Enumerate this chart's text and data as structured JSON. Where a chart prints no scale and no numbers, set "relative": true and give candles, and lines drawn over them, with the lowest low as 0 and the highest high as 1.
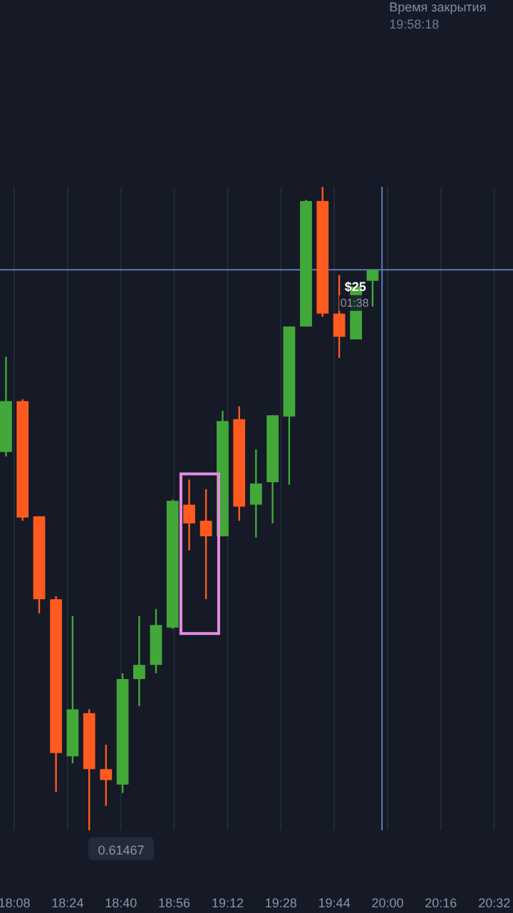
{
  "chart_data": {
    "type": "candlestick",
    "relative": true,
    "x": [
      18.092,
      18.175,
      18.258,
      18.342,
      18.425,
      18.508,
      18.592,
      18.675,
      18.758,
      18.842,
      18.925,
      19.008,
      19.092,
      19.175,
      19.258,
      19.342,
      19.425,
      19.508,
      19.592,
      19.675,
      19.758,
      19.842,
      19.925
    ],
    "ohlc": [
      [
        0.588,
        0.736,
        0.581,
        0.667
      ],
      [
        0.667,
        0.67,
        0.481,
        0.486
      ],
      [
        0.488,
        0.488,
        0.337,
        0.359
      ],
      [
        0.359,
        0.364,
        0.06,
        0.12
      ],
      [
        0.115,
        0.333,
        0.104,
        0.188
      ],
      [
        0.182,
        0.188,
        0,
        0.095
      ],
      [
        0.095,
        0.133,
        0.038,
        0.078
      ],
      [
        0.071,
        0.244,
        0.058,
        0.235
      ],
      [
        0.235,
        0.333,
        0.193,
        0.257
      ],
      [
        0.257,
        0.344,
        0.244,
        0.319
      ],
      [
        0.315,
        0.514,
        0.313,
        0.512
      ],
      [
        0.506,
        0.545,
        0.435,
        0.477
      ],
      [
        0.481,
        0.53,
        0.359,
        0.457
      ],
      [
        0.457,
        0.652,
        0.457,
        0.636
      ],
      [
        0.639,
        0.659,
        0.481,
        0.503
      ],
      [
        0.506,
        0.592,
        0.455,
        0.539
      ],
      [
        0.541,
        0.645,
        0.477,
        0.645
      ],
      [
        0.643,
        0.783,
        0.537,
        0.783
      ],
      [
        0.783,
        0.98,
        0.783,
        0.978
      ],
      [
        0.978,
        1,
        0.798,
        0.803
      ],
      [
        0.803,
        0.863,
        0.734,
        0.767
      ],
      [
        0.763,
        0.845,
        0.763,
        0.845
      ],
      [
        0.854,
        0.871,
        0.814,
        0.871
      ]
    ],
    "colors": [
      "#43a83a",
      "#ff5a1f",
      "#ff5a1f",
      "#ff5a1f",
      "#43a83a",
      "#ff5a1f",
      "#ff5a1f",
      "#43a83a",
      "#43a83a",
      "#43a83a",
      "#43a83a",
      "#ff5a1f",
      "#ff5a1f",
      "#43a83a",
      "#ff5a1f",
      "#43a83a",
      "#43a83a",
      "#43a83a",
      "#43a83a",
      "#ff5a1f",
      "#ff5a1f",
      "#43a83a",
      "#43a83a"
    ],
    "xlim": [
      18.062,
      20.627
    ],
    "xticks": [
      {
        "value": 18.1333,
        "label": "18:08"
      },
      {
        "value": 18.4,
        "label": "18:24"
      },
      {
        "value": 18.6667,
        "label": "18:40"
      },
      {
        "value": 18.9333,
        "label": "18:56"
      },
      {
        "value": 19.2,
        "label": "19:12"
      },
      {
        "value": 19.4667,
        "label": "19:28"
      },
      {
        "value": 19.7333,
        "label": "19:44"
      },
      {
        "value": 20,
        "label": "20:00"
      },
      {
        "value": 20.2667,
        "label": "20:16"
      },
      {
        "value": 20.5333,
        "label": "20:32"
      }
    ],
    "grid": "x",
    "ref_lines": [
      {
        "axis": "x",
        "value": 19.972,
        "label": "Время закрытия",
        "color": "#5b7bb5"
      },
      {
        "axis": "y",
        "value": 0.871,
        "label": null,
        "color": "#5b7bb5"
      }
    ],
    "annotations": [
      "19:58:18",
      "0.61467",
      "$25",
      "01:38"
    ]
  }
}
